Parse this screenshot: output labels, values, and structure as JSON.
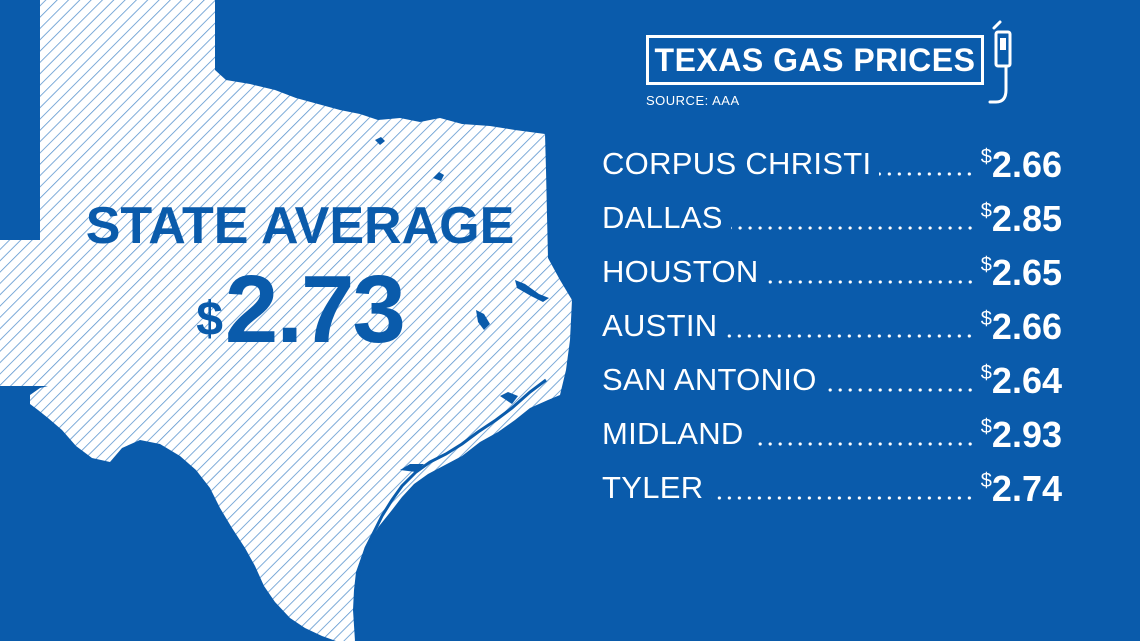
{
  "colors": {
    "background": "#0a5bab",
    "map_fill": "#ffffff",
    "map_hatch": "#5c96cf",
    "text": "#ffffff"
  },
  "state_average": {
    "label": "STATE AVERAGE",
    "currency": "$",
    "value": "2.73"
  },
  "title": "TEXAS GAS PRICES",
  "source": "SOURCE: AAA",
  "icons": {
    "title": "gas-pump-icon",
    "map": "texas-map"
  },
  "prices": [
    {
      "city": "CORPUS CHRISTI",
      "currency": "$",
      "price": "2.66"
    },
    {
      "city": "DALLAS",
      "currency": "$",
      "price": "2.85"
    },
    {
      "city": "HOUSTON",
      "currency": "$",
      "price": "2.65"
    },
    {
      "city": "AUSTIN",
      "currency": "$",
      "price": "2.66"
    },
    {
      "city": "SAN ANTONIO",
      "currency": "$",
      "price": "2.64"
    },
    {
      "city": "MIDLAND",
      "currency": "$",
      "price": "2.93"
    },
    {
      "city": "TYLER",
      "currency": "$",
      "price": "2.74"
    }
  ]
}
